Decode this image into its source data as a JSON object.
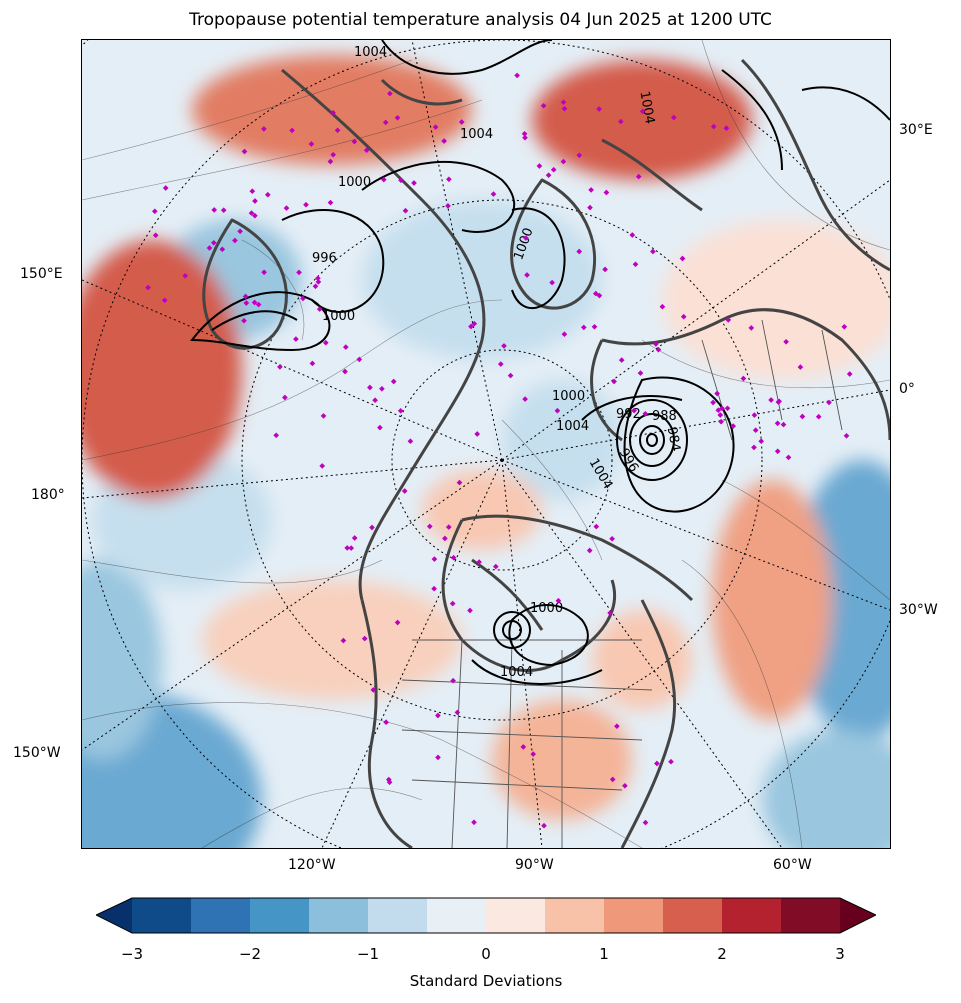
{
  "title": "Tropopause potential temperature analysis 04 Jun 2025 at 1200 UTC",
  "colors": {
    "cold_strong": "#0e4a8a",
    "cold": "#2f7ab8",
    "cold_light": "#9ac6df",
    "neutral_cold": "#e6f0f7",
    "neutral_warm": "#fbe7df",
    "warm_light": "#f4b498",
    "warm": "#d45c4b",
    "warm_strong": "#8b0b24",
    "coastline": "#444444",
    "pressure_contour": "#000000",
    "station_marker": "#c000c0"
  },
  "lon_labels": {
    "e30": "30°E",
    "e150": "150°E",
    "zero": "0°",
    "lon180": "180°",
    "w30": "30°W",
    "w150": "150°W",
    "w120": "120°W",
    "w90": "90°W",
    "w60": "60°W"
  },
  "contour_labels": [
    "1004",
    "1004",
    "1000",
    "996",
    "1000",
    "1000",
    "1004",
    "1000",
    "1004",
    "992",
    "988",
    "984",
    "996",
    "1004",
    "1000",
    "1004"
  ],
  "colorbar": {
    "label": "Standard Deviations",
    "ticks": [
      "−3",
      "−2",
      "−1",
      "0",
      "1",
      "2",
      "3"
    ],
    "bin_colors": [
      "#0f4a89",
      "#2f73b5",
      "#4596c6",
      "#8bbfdc",
      "#c2dced",
      "#e8f0f6",
      "#fbe8e0",
      "#f8c2a8",
      "#f0997a",
      "#d6604d",
      "#b4212f",
      "#800c26"
    ],
    "extend_low_color": "#08306b",
    "extend_high_color": "#67001f"
  }
}
